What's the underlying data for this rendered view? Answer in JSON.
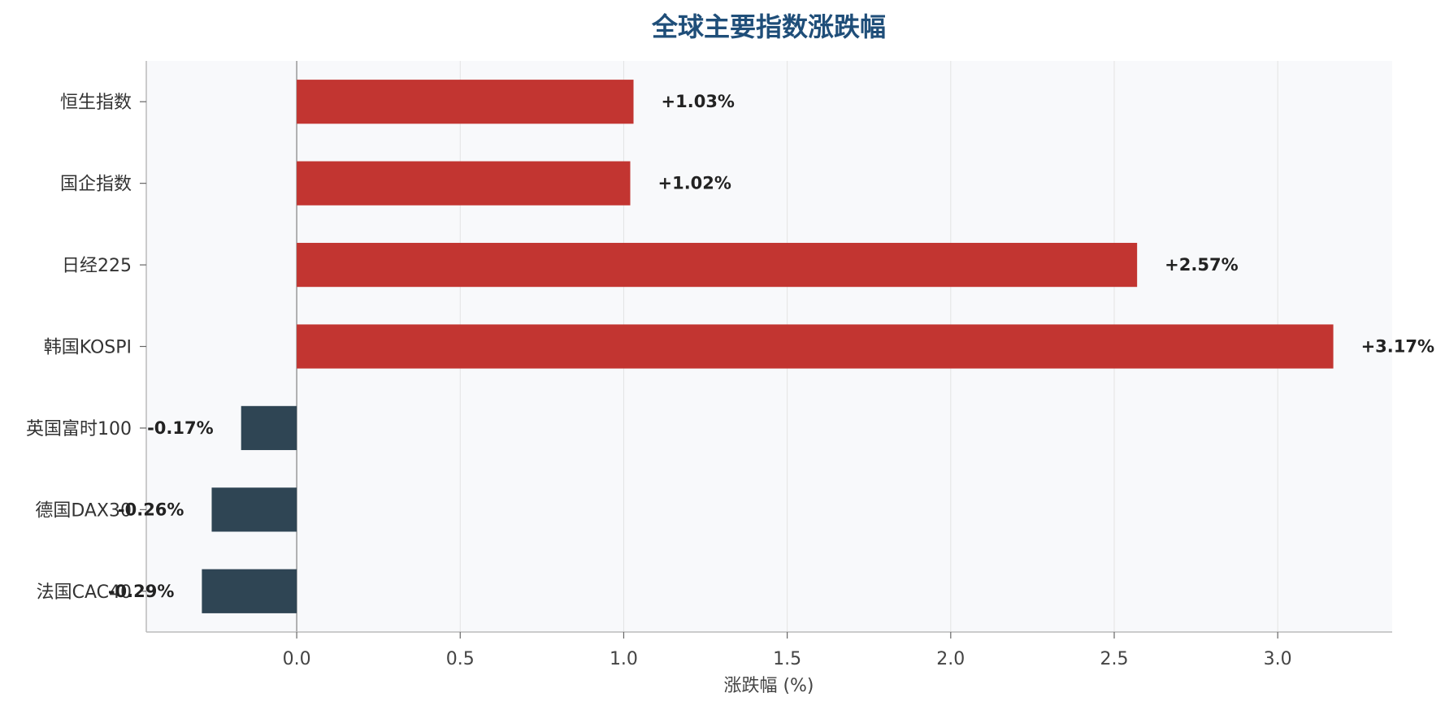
{
  "chart_data": {
    "type": "bar",
    "orientation": "horizontal",
    "title": "全球主要指数涨跌幅",
    "xlabel": "涨跌幅 (%)",
    "ylabel": "",
    "categories": [
      "恒生指数",
      "国企指数",
      "日经225",
      "韩国KOSPI",
      "英国富时100",
      "德国DAX30",
      "法国CAC40"
    ],
    "values": [
      1.03,
      1.02,
      2.57,
      3.17,
      -0.17,
      -0.26,
      -0.29
    ],
    "value_labels": [
      "+1.03%",
      "+1.02%",
      "+2.57%",
      "+3.17%",
      "-0.17%",
      "-0.26%",
      "-0.29%"
    ],
    "xlim": [
      -0.46,
      3.35
    ],
    "xticks": [
      0.0,
      0.5,
      1.0,
      1.5,
      2.0,
      2.5,
      3.0
    ],
    "xtick_labels": [
      "0.0",
      "0.5",
      "1.0",
      "1.5",
      "2.0",
      "2.5",
      "3.0"
    ],
    "grid": "vertical",
    "legend": "none",
    "colors": {
      "positive": "#c23531",
      "negative": "#2f4554",
      "title": "#1f4e79",
      "plot_background": "#f8f9fb",
      "grid": "#e3e3e3",
      "axis": "#bbbbbb",
      "zero_line": "#999999"
    }
  }
}
